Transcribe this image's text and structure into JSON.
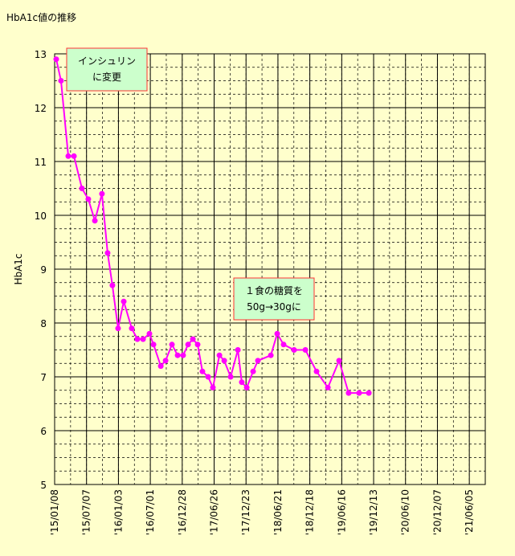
{
  "chart_data": {
    "type": "line",
    "title": "HbA1c値の推移",
    "y_label": "HbA1c",
    "x": [
      9,
      36,
      77,
      109,
      154,
      190,
      227,
      267,
      299,
      326,
      358,
      390,
      435,
      467,
      499,
      535,
      558,
      599,
      626,
      662,
      694,
      725,
      753,
      780,
      807,
      834,
      866,
      893,
      930,
      957,
      993,
      1034,
      1056,
      1084,
      1120,
      1147,
      1220,
      1256,
      1292,
      1351,
      1415,
      1478,
      1542,
      1605,
      1659,
      1718,
      1773
    ],
    "series": [
      {
        "name": "HbA1c",
        "color": "#ff00ff",
        "values": [
          12.9,
          12.5,
          11.1,
          11.1,
          10.5,
          10.3,
          9.9,
          10.4,
          9.3,
          8.7,
          7.9,
          8.4,
          7.9,
          7.7,
          7.7,
          7.8,
          7.6,
          7.2,
          7.3,
          7.6,
          7.4,
          7.4,
          7.6,
          7.7,
          7.6,
          7.1,
          7.0,
          6.8,
          7.4,
          7.3,
          7.0,
          7.5,
          6.9,
          6.8,
          7.1,
          7.3,
          7.4,
          7.8,
          7.6,
          7.5,
          7.5,
          7.1,
          6.8,
          7.3,
          6.7,
          6.7,
          6.7
        ]
      }
    ],
    "xlim": [
      0,
      2430
    ],
    "xticks": [
      {
        "value": 0,
        "label": "'15/01/08"
      },
      {
        "value": 180,
        "label": "'15/07/07"
      },
      {
        "value": 360,
        "label": "'16/01/03"
      },
      {
        "value": 540,
        "label": "'16/07/01"
      },
      {
        "value": 720,
        "label": "'16/12/28"
      },
      {
        "value": 900,
        "label": "'17/06/26"
      },
      {
        "value": 1080,
        "label": "'17/12/23"
      },
      {
        "value": 1260,
        "label": "'18/06/21"
      },
      {
        "value": 1440,
        "label": "'18/12/18"
      },
      {
        "value": 1620,
        "label": "'19/06/16"
      },
      {
        "value": 1800,
        "label": "'19/12/13"
      },
      {
        "value": 1980,
        "label": "'20/06/10"
      },
      {
        "value": 2160,
        "label": "'20/12/07"
      },
      {
        "value": 2340,
        "label": "'21/06/05"
      }
    ],
    "ylim": [
      5,
      13
    ],
    "yticks": [
      5,
      6,
      7,
      8,
      9,
      10,
      11,
      12,
      13
    ],
    "x_minor_step": 90,
    "y_minor_step": 0.25,
    "grid": true,
    "annotations": [
      {
        "lines": [
          "インシュリン",
          "に変更"
        ]
      },
      {
        "lines": [
          "１食の糖質を",
          "50g→30gに"
        ]
      }
    ]
  }
}
